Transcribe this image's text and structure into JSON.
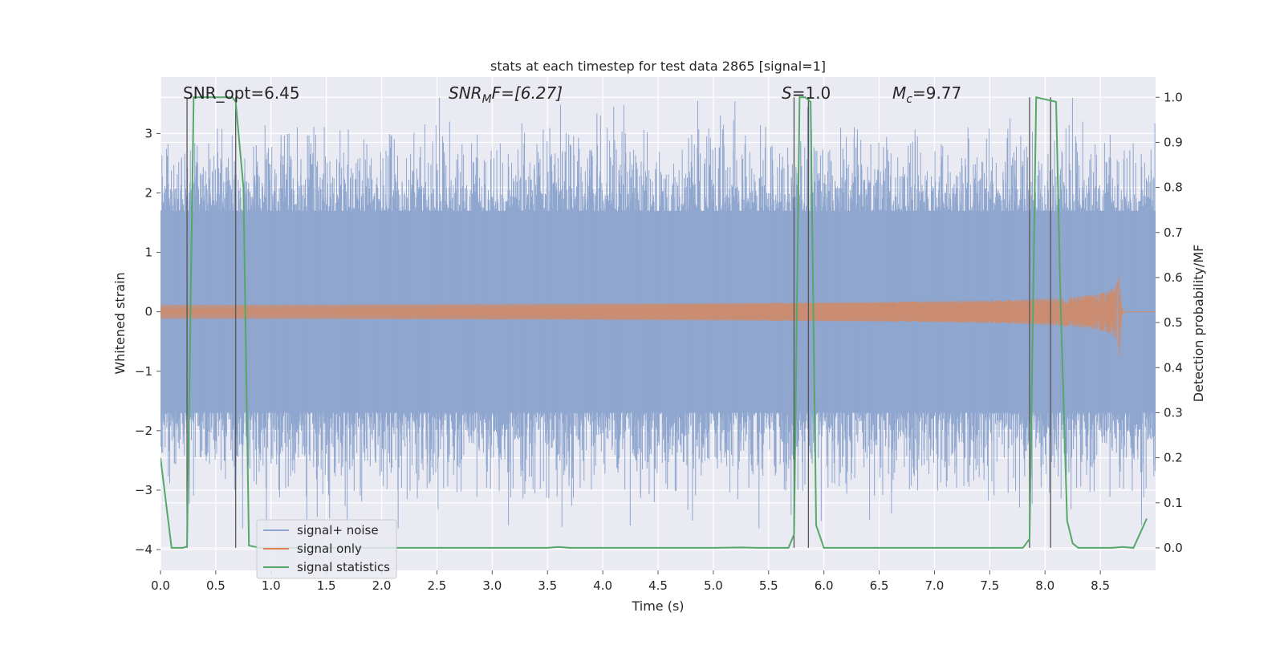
{
  "chart_data": {
    "type": "line",
    "title": "stats at each timestep for test data 2865 [signal=1]",
    "xlabel": "Time (s)",
    "ylabel_left": "Whitened strain",
    "ylabel_right": "Detection probability/MF",
    "xlim": [
      0.0,
      9.0
    ],
    "ylim_left": [
      -4.35,
      3.95
    ],
    "ylim_right": [
      -0.05,
      1.045
    ],
    "x_ticks": [
      0.0,
      0.5,
      1.0,
      1.5,
      2.0,
      2.5,
      3.0,
      3.5,
      4.0,
      4.5,
      5.0,
      5.5,
      6.0,
      6.5,
      7.0,
      7.5,
      8.0,
      8.5
    ],
    "x_tick_labels": [
      "0.0",
      "0.5",
      "1.0",
      "1.5",
      "2.0",
      "2.5",
      "3.0",
      "3.5",
      "4.0",
      "4.5",
      "5.0",
      "5.5",
      "6.0",
      "6.5",
      "7.0",
      "7.5",
      "8.0",
      "8.5"
    ],
    "y_left_ticks": [
      -4,
      -3,
      -2,
      -1,
      0,
      1,
      2,
      3
    ],
    "y_left_tick_labels": [
      "−4",
      "−3",
      "−2",
      "−1",
      "0",
      "1",
      "2",
      "3"
    ],
    "y_right_ticks": [
      0.0,
      0.1,
      0.2,
      0.3,
      0.4,
      0.5,
      0.6,
      0.7,
      0.8,
      0.9,
      1.0
    ],
    "y_right_tick_labels": [
      "0.0",
      "0.1",
      "0.2",
      "0.3",
      "0.4",
      "0.5",
      "0.6",
      "0.7",
      "0.8",
      "0.9",
      "1.0"
    ],
    "grid": true,
    "legend_position": "lower-left",
    "annotations": {
      "snr_opt": "SNR_opt=6.45",
      "snr_mf_prefix": "SNR",
      "snr_mf_sub": "M",
      "snr_mf_suffix": "F=[6.27]",
      "s_prefix": "S",
      "s_suffix": "=1.0",
      "mc_prefix": "M",
      "mc_sub": "c",
      "mc_suffix": "=9.77"
    },
    "series": [
      {
        "name": "signal+ noise",
        "color": "#8fa6cf",
        "axis": "left",
        "t_range": [
          0.0,
          9.0
        ],
        "samples": 4096,
        "core_band": [
          -1.7,
          1.7
        ],
        "extremes": [
          -4.0,
          3.6
        ]
      },
      {
        "name": "signal only",
        "color": "#dd8452",
        "axis": "left",
        "t_range": [
          0.0,
          9.0
        ],
        "merger_time": 8.68,
        "peak_amplitude": 0.9
      },
      {
        "name": "signal statistics",
        "color": "#55a868",
        "axis": "right",
        "x": [
          0.0,
          0.06,
          0.1,
          0.2,
          0.24,
          0.3,
          0.65,
          0.68,
          0.75,
          0.8,
          0.9,
          3.5,
          3.6,
          3.7,
          5.0,
          5.25,
          5.4,
          5.68,
          5.73,
          5.78,
          5.83,
          5.88,
          5.93,
          6.0,
          7.8,
          7.86,
          7.92,
          8.1,
          8.14,
          8.2,
          8.25,
          8.3,
          8.4,
          8.6,
          8.7,
          8.8,
          8.92
        ],
        "y": [
          0.2,
          0.08,
          0.0,
          0.0,
          0.003,
          1.0,
          1.0,
          0.99,
          0.8,
          0.005,
          0.0,
          0.0,
          0.002,
          0.0,
          0.0,
          0.001,
          0.0,
          0.0,
          0.03,
          1.0,
          1.0,
          0.99,
          0.05,
          0.0,
          0.0,
          0.02,
          1.0,
          0.99,
          0.55,
          0.06,
          0.01,
          0.0,
          0.0,
          0.0,
          0.002,
          0.0,
          0.065
        ]
      }
    ],
    "marker_lines": {
      "color": "#555555",
      "x": [
        0.24,
        0.68,
        5.73,
        5.86,
        7.86,
        8.05
      ]
    }
  }
}
